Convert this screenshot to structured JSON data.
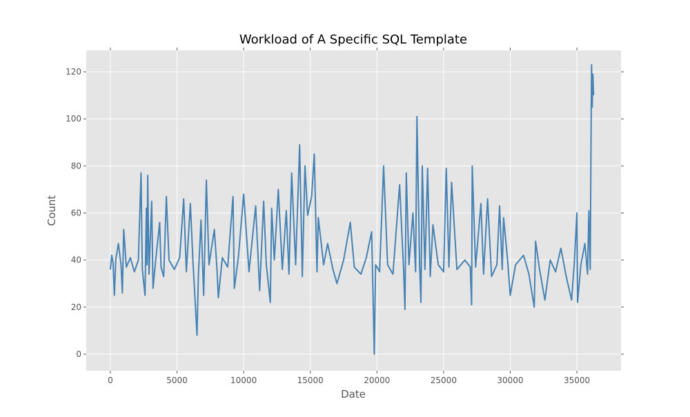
{
  "chart_data": {
    "type": "line",
    "title": "Workload of A Specific SQL Template",
    "xlabel": "Date",
    "ylabel": "Count",
    "x": [
      0,
      100,
      200,
      300,
      400,
      600,
      800,
      900,
      1000,
      1200,
      1500,
      1800,
      2100,
      2300,
      2400,
      2600,
      2700,
      2750,
      2800,
      2900,
      3100,
      3200,
      3400,
      3700,
      3800,
      4000,
      4200,
      4400,
      4800,
      5200,
      5500,
      5700,
      6000,
      6200,
      6500,
      6600,
      6800,
      7000,
      7200,
      7400,
      7800,
      8000,
      8100,
      8400,
      8800,
      9200,
      9300,
      9600,
      10000,
      10400,
      10900,
      11200,
      11500,
      11700,
      12000,
      12100,
      12300,
      12600,
      12900,
      13200,
      13400,
      13600,
      13900,
      14200,
      14400,
      14600,
      14800,
      15100,
      15300,
      15500,
      15600,
      16000,
      16300,
      16700,
      17000,
      17500,
      18000,
      18300,
      18800,
      19200,
      19600,
      19700,
      19800,
      19900,
      20200,
      20500,
      20800,
      21200,
      21700,
      22000,
      22100,
      22200,
      22400,
      22700,
      22900,
      23000,
      23200,
      23300,
      23400,
      23600,
      23800,
      24000,
      24200,
      24600,
      25000,
      25200,
      25400,
      25600,
      26000,
      26600,
      27000,
      27100,
      27150,
      27400,
      27800,
      28000,
      28300,
      28600,
      29000,
      29200,
      29400,
      29500,
      29800,
      30000,
      30400,
      31000,
      31400,
      31800,
      31900,
      32200,
      32600,
      33000,
      33400,
      33800,
      34200,
      34600,
      34800,
      35000,
      35050,
      35300,
      35600,
      35800,
      35900,
      36000,
      36100,
      36150,
      36200,
      36250
    ],
    "series": [
      {
        "name": "Count",
        "color": "#4682b4",
        "values": [
          36,
          42,
          39,
          25,
          40,
          47,
          38,
          26,
          53,
          37,
          41,
          35,
          40,
          77,
          36,
          25,
          62,
          38,
          76,
          34,
          65,
          28,
          40,
          56,
          37,
          33,
          67,
          40,
          36,
          41,
          66,
          35,
          64,
          39,
          8,
          33,
          57,
          25,
          74,
          38,
          53,
          36,
          24,
          41,
          37,
          67,
          28,
          41,
          68,
          35,
          63,
          27,
          65,
          38,
          22,
          62,
          40,
          70,
          36,
          61,
          34,
          77,
          38,
          89,
          33,
          80,
          59,
          67,
          85,
          35,
          58,
          38,
          47,
          36,
          30,
          40,
          56,
          37,
          34,
          41,
          52,
          27,
          0,
          38,
          35,
          80,
          38,
          34,
          72,
          36,
          19,
          77,
          38,
          60,
          35,
          101,
          38,
          22,
          80,
          36,
          79,
          33,
          55,
          38,
          35,
          79,
          37,
          73,
          36,
          40,
          37,
          21,
          80,
          37,
          64,
          34,
          66,
          33,
          38,
          63,
          36,
          58,
          40,
          25,
          38,
          42,
          34,
          20,
          48,
          36,
          23,
          40,
          35,
          45,
          33,
          23,
          38,
          60,
          22,
          38,
          47,
          34,
          61,
          36,
          123,
          105,
          119,
          110
        ]
      }
    ],
    "xlim": [
      -1810,
      38310
    ],
    "ylim": [
      -7.05,
      129.1
    ],
    "xticks": [
      0,
      5000,
      10000,
      15000,
      20000,
      25000,
      30000,
      35000
    ],
    "yticks": [
      0,
      20,
      40,
      60,
      80,
      100,
      120
    ],
    "grid": true
  }
}
